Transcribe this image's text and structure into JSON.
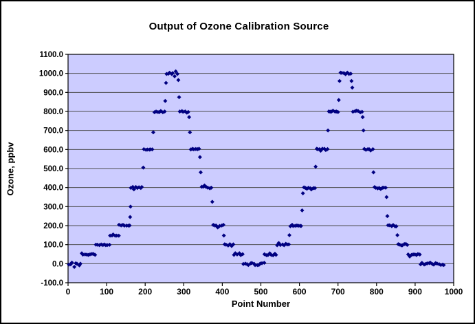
{
  "chart_data": {
    "type": "scatter",
    "title": "Output of Ozone Calibration Source",
    "xlabel": "Point Number",
    "ylabel": "Ozone, ppbv",
    "xlim": [
      0,
      1000
    ],
    "ylim": [
      -100,
      1100
    ],
    "x_ticks": [
      0,
      100,
      200,
      300,
      400,
      500,
      600,
      700,
      800,
      900,
      1000
    ],
    "y_ticks": [
      -100,
      0,
      100,
      200,
      300,
      400,
      500,
      600,
      700,
      800,
      900,
      1000,
      1100
    ],
    "y_tick_decimals": 1,
    "grid": "horizontal",
    "legend": "none",
    "plot_bg": "#CCCCFF",
    "grid_color": "#4D4D4D",
    "border_color": "#000000",
    "marker": {
      "shape": "diamond",
      "color": "#000080",
      "size": 6
    },
    "segments": [
      {
        "x0": 2,
        "x1": 33,
        "y": 0
      },
      {
        "x0": 35,
        "x1": 70,
        "y": 50
      },
      {
        "x0": 72,
        "x1": 107,
        "y": 100
      },
      {
        "x0": 109,
        "x1": 131,
        "y": 150
      },
      {
        "x0": 133,
        "x1": 160,
        "y": 200
      },
      {
        "x0": 163,
        "x1": 192,
        "y": 400
      },
      {
        "x0": 197,
        "x1": 219,
        "y": 600
      },
      {
        "x0": 224,
        "x1": 250,
        "y": 800
      },
      {
        "x0": 256,
        "x1": 284,
        "y": 1000
      },
      {
        "x0": 290,
        "x1": 312,
        "y": 800
      },
      {
        "x0": 318,
        "x1": 340,
        "y": 600
      },
      {
        "x0": 346,
        "x1": 372,
        "y": 400
      },
      {
        "x0": 376,
        "x1": 402,
        "y": 200
      },
      {
        "x0": 406,
        "x1": 428,
        "y": 100
      },
      {
        "x0": 430,
        "x1": 453,
        "y": 50
      },
      {
        "x0": 455,
        "x1": 508,
        "y": 0
      },
      {
        "x0": 510,
        "x1": 540,
        "y": 50
      },
      {
        "x0": 543,
        "x1": 572,
        "y": 100
      },
      {
        "x0": 576,
        "x1": 605,
        "y": 200
      },
      {
        "x0": 611,
        "x1": 640,
        "y": 400
      },
      {
        "x0": 644,
        "x1": 672,
        "y": 600
      },
      {
        "x0": 676,
        "x1": 700,
        "y": 800
      },
      {
        "x0": 706,
        "x1": 733,
        "y": 1000
      },
      {
        "x0": 739,
        "x1": 762,
        "y": 800
      },
      {
        "x0": 768,
        "x1": 790,
        "y": 600
      },
      {
        "x0": 794,
        "x1": 824,
        "y": 400
      },
      {
        "x0": 830,
        "x1": 852,
        "y": 200
      },
      {
        "x0": 856,
        "x1": 880,
        "y": 100
      },
      {
        "x0": 882,
        "x1": 912,
        "y": 50
      },
      {
        "x0": 914,
        "x1": 975,
        "y": 0
      }
    ],
    "transitions": [
      [
        161,
        245
      ],
      [
        162,
        300
      ],
      [
        195,
        505
      ],
      [
        221,
        690
      ],
      [
        252,
        855
      ],
      [
        254,
        950
      ],
      [
        286,
        965
      ],
      [
        288,
        875
      ],
      [
        314,
        770
      ],
      [
        316,
        690
      ],
      [
        342,
        560
      ],
      [
        344,
        480
      ],
      [
        374,
        325
      ],
      [
        404,
        148
      ],
      [
        574,
        150
      ],
      [
        607,
        280
      ],
      [
        609,
        370
      ],
      [
        642,
        510
      ],
      [
        674,
        700
      ],
      [
        702,
        860
      ],
      [
        704,
        960
      ],
      [
        735,
        960
      ],
      [
        737,
        925
      ],
      [
        764,
        770
      ],
      [
        766,
        700
      ],
      [
        792,
        480
      ],
      [
        826,
        350
      ],
      [
        828,
        250
      ],
      [
        854,
        150
      ]
    ],
    "sample_spacing": 4.3,
    "jitter": {
      "y_base": 9,
      "y_low": 13,
      "x": 2,
      "zero_offset": -4
    }
  }
}
